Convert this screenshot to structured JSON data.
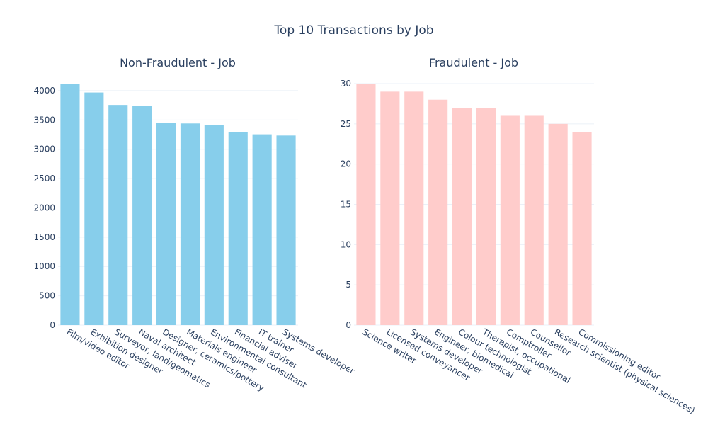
{
  "title": "Top 10 Transactions by Job",
  "colors": {
    "non_fraud": "#87ceeb",
    "fraud": "#ffcccb",
    "text": "#2a3f5f",
    "grid": "#ebf0f8"
  },
  "chart_data": [
    {
      "type": "bar",
      "title": "Non-Fraudulent - Job",
      "categories": [
        "Film/video editor",
        "Exhibition designer",
        "Surveyor, land/geomatics",
        "Naval architect",
        "Designer, ceramics/pottery",
        "Materials engineer",
        "Environmental consultant",
        "Financial adviser",
        "IT trainer",
        "Systems developer"
      ],
      "values": [
        4119,
        3968,
        3756,
        3738,
        3451,
        3440,
        3412,
        3287,
        3255,
        3234
      ],
      "yticks": [
        0,
        500,
        1000,
        1500,
        2000,
        2500,
        3000,
        3500,
        4000
      ],
      "ylim": [
        0,
        4120
      ],
      "color": "#87ceeb",
      "grid": true
    },
    {
      "type": "bar",
      "title": "Fraudulent - Job",
      "categories": [
        "Science writer",
        "Licensed conveyancer",
        "Systems developer",
        "Engineer, biomedical",
        "Colour technologist",
        "Therapist, occupational",
        "Comptroller",
        "Counsellor",
        "Research scientist (physical sciences)",
        "Commissioning editor"
      ],
      "values": [
        30,
        29,
        29,
        28,
        27,
        27,
        26,
        26,
        25,
        24
      ],
      "yticks": [
        0,
        5,
        10,
        15,
        20,
        25,
        30
      ],
      "ylim": [
        0,
        30
      ],
      "color": "#ffcccb",
      "grid": true
    }
  ]
}
